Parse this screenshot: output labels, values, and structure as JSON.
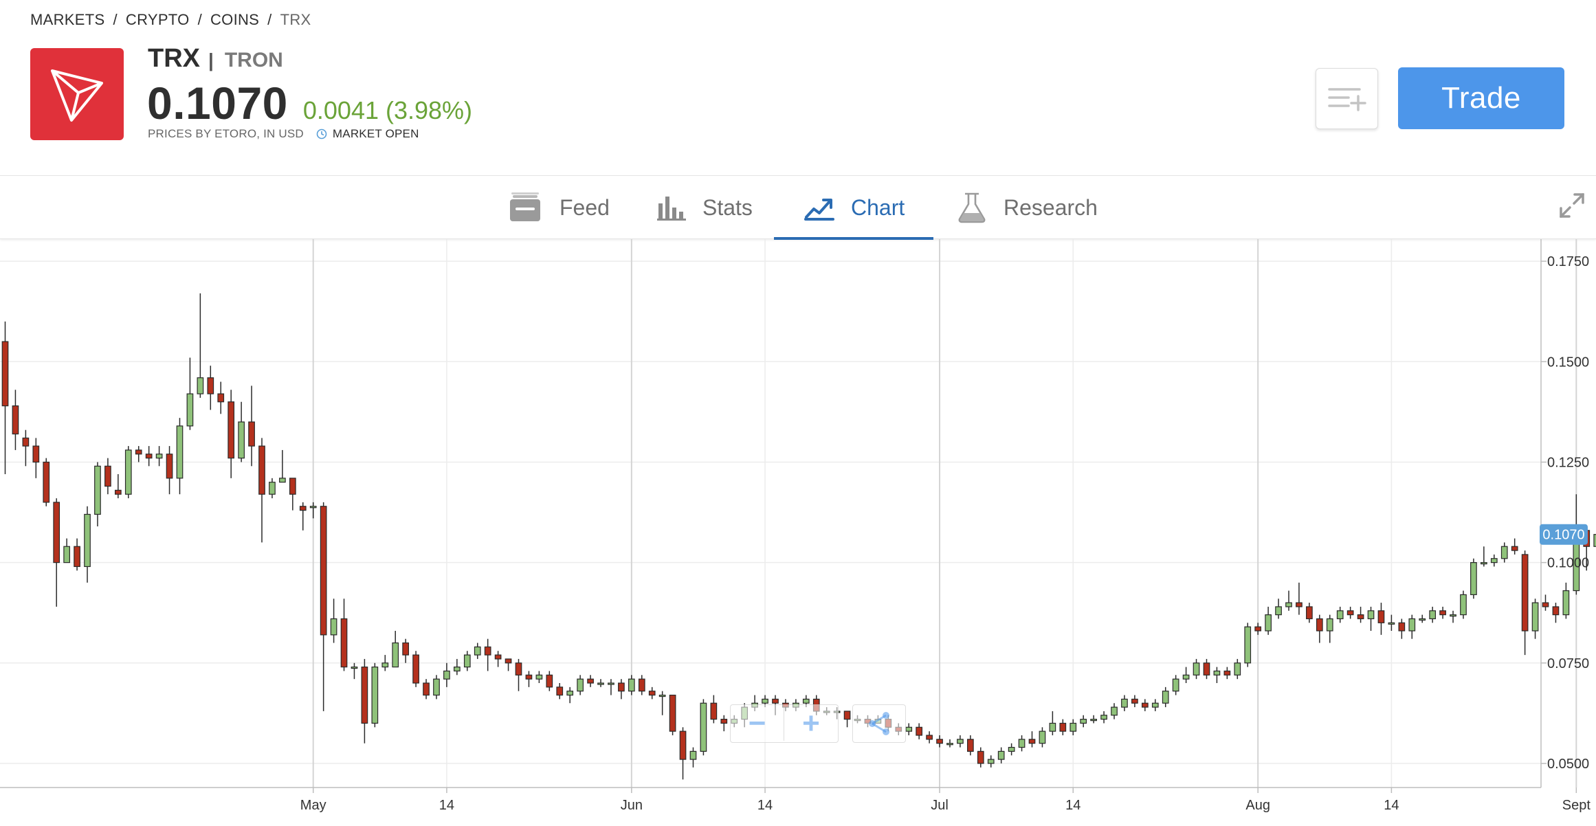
{
  "breadcrumb": {
    "items": [
      "MARKETS",
      "CRYPTO",
      "COINS"
    ],
    "current": "TRX",
    "separator": "/"
  },
  "instrument": {
    "symbol": "TRX",
    "name": "TRON",
    "price": "0.1070",
    "change": "0.0041 (3.98%)",
    "source": "PRICES BY ETORO, IN USD",
    "market_status": "MARKET OPEN",
    "logo_color": "#e0313a"
  },
  "actions": {
    "trade_label": "Trade",
    "watchlist_icon": "add-to-watchlist-icon"
  },
  "tabs": [
    {
      "label": "Feed",
      "icon": "feed-icon"
    },
    {
      "label": "Stats",
      "icon": "stats-icon"
    },
    {
      "label": "Chart",
      "icon": "chart-icon",
      "active": true
    },
    {
      "label": "Research",
      "icon": "research-icon"
    }
  ],
  "colors": {
    "accent": "#2b6cb3",
    "trade": "#4d96ea",
    "up": "#6aa338",
    "candle_up": "#8fc27a",
    "candle_down": "#b4311d",
    "price_tag": "#5a9fd8"
  },
  "chart_controls": {
    "zoom_out": "−",
    "zoom_in": "+"
  },
  "chart_data": {
    "type": "candlestick",
    "interval": "daily",
    "ylim": [
      0.044,
      0.1805
    ],
    "y_ticks": [
      "0.0500",
      "0.0750",
      "0.1000",
      "0.1250",
      "0.1500",
      "0.1750"
    ],
    "y_tick_values": [
      0.05,
      0.075,
      0.1,
      0.125,
      0.15,
      0.175
    ],
    "x_ticks": [
      {
        "label": "May",
        "day": 30,
        "major": true
      },
      {
        "label": "14",
        "day": 43
      },
      {
        "label": "Jun",
        "day": 61,
        "major": true
      },
      {
        "label": "14",
        "day": 74
      },
      {
        "label": "Jul",
        "day": 91,
        "major": true
      },
      {
        "label": "14",
        "day": 104
      },
      {
        "label": "Aug",
        "day": 122,
        "major": true
      },
      {
        "label": "14",
        "day": 135
      },
      {
        "label": "Sept",
        "day": 153,
        "major": true
      },
      {
        "label": "14",
        "day": 166
      }
    ],
    "last_price_label": "0.1070",
    "last_price": 0.107,
    "grid": true,
    "candles": [
      [
        0.155,
        0.139,
        0.16,
        0.122
      ],
      [
        0.139,
        0.132,
        0.143,
        0.128
      ],
      [
        0.131,
        0.129,
        0.133,
        0.124
      ],
      [
        0.129,
        0.125,
        0.131,
        0.121
      ],
      [
        0.125,
        0.115,
        0.126,
        0.114
      ],
      [
        0.115,
        0.1,
        0.116,
        0.089
      ],
      [
        0.1,
        0.104,
        0.106,
        0.101
      ],
      [
        0.104,
        0.099,
        0.106,
        0.098
      ],
      [
        0.099,
        0.112,
        0.114,
        0.095
      ],
      [
        0.112,
        0.124,
        0.125,
        0.109
      ],
      [
        0.124,
        0.119,
        0.126,
        0.117
      ],
      [
        0.118,
        0.117,
        0.122,
        0.116
      ],
      [
        0.117,
        0.128,
        0.129,
        0.116
      ],
      [
        0.128,
        0.127,
        0.129,
        0.125
      ],
      [
        0.127,
        0.126,
        0.129,
        0.124
      ],
      [
        0.126,
        0.127,
        0.129,
        0.124
      ],
      [
        0.127,
        0.121,
        0.129,
        0.117
      ],
      [
        0.121,
        0.134,
        0.136,
        0.117
      ],
      [
        0.134,
        0.142,
        0.151,
        0.133
      ],
      [
        0.142,
        0.146,
        0.167,
        0.141
      ],
      [
        0.146,
        0.142,
        0.149,
        0.138
      ],
      [
        0.142,
        0.14,
        0.145,
        0.137
      ],
      [
        0.14,
        0.126,
        0.143,
        0.121
      ],
      [
        0.126,
        0.135,
        0.14,
        0.125
      ],
      [
        0.135,
        0.129,
        0.144,
        0.124
      ],
      [
        0.129,
        0.117,
        0.131,
        0.105
      ],
      [
        0.117,
        0.12,
        0.121,
        0.116
      ],
      [
        0.12,
        0.121,
        0.128,
        0.12
      ],
      [
        0.121,
        0.117,
        0.121,
        0.113
      ],
      [
        0.114,
        0.113,
        0.115,
        0.108
      ],
      [
        0.114,
        0.114,
        0.115,
        0.111
      ],
      [
        0.114,
        0.082,
        0.115,
        0.063
      ],
      [
        0.082,
        0.086,
        0.091,
        0.08
      ],
      [
        0.086,
        0.074,
        0.091,
        0.073
      ],
      [
        0.074,
        0.074,
        0.075,
        0.071
      ],
      [
        0.074,
        0.06,
        0.076,
        0.055
      ],
      [
        0.06,
        0.074,
        0.075,
        0.059
      ],
      [
        0.074,
        0.075,
        0.077,
        0.073
      ],
      [
        0.074,
        0.08,
        0.083,
        0.074
      ],
      [
        0.08,
        0.077,
        0.081,
        0.075
      ],
      [
        0.077,
        0.07,
        0.078,
        0.069
      ],
      [
        0.07,
        0.067,
        0.071,
        0.066
      ],
      [
        0.067,
        0.071,
        0.072,
        0.066
      ],
      [
        0.071,
        0.073,
        0.075,
        0.069
      ],
      [
        0.073,
        0.074,
        0.076,
        0.072
      ],
      [
        0.074,
        0.077,
        0.078,
        0.073
      ],
      [
        0.077,
        0.079,
        0.08,
        0.076
      ],
      [
        0.079,
        0.077,
        0.081,
        0.073
      ],
      [
        0.077,
        0.076,
        0.078,
        0.074
      ],
      [
        0.076,
        0.075,
        0.076,
        0.073
      ],
      [
        0.075,
        0.072,
        0.076,
        0.068
      ],
      [
        0.072,
        0.071,
        0.073,
        0.069
      ],
      [
        0.071,
        0.072,
        0.073,
        0.07
      ],
      [
        0.072,
        0.069,
        0.073,
        0.068
      ],
      [
        0.069,
        0.067,
        0.07,
        0.066
      ],
      [
        0.067,
        0.068,
        0.069,
        0.065
      ],
      [
        0.068,
        0.071,
        0.072,
        0.067
      ],
      [
        0.071,
        0.07,
        0.072,
        0.069
      ],
      [
        0.07,
        0.07,
        0.071,
        0.069
      ],
      [
        0.07,
        0.07,
        0.071,
        0.067
      ],
      [
        0.07,
        0.068,
        0.071,
        0.066
      ],
      [
        0.068,
        0.071,
        0.072,
        0.067
      ],
      [
        0.071,
        0.068,
        0.072,
        0.067
      ],
      [
        0.068,
        0.067,
        0.069,
        0.066
      ],
      [
        0.067,
        0.067,
        0.068,
        0.062
      ],
      [
        0.067,
        0.058,
        0.067,
        0.057
      ],
      [
        0.058,
        0.051,
        0.059,
        0.046
      ],
      [
        0.051,
        0.053,
        0.054,
        0.049
      ],
      [
        0.053,
        0.065,
        0.066,
        0.052
      ],
      [
        0.065,
        0.061,
        0.067,
        0.06
      ],
      [
        0.061,
        0.06,
        0.062,
        0.058
      ],
      [
        0.06,
        0.061,
        0.062,
        0.059
      ],
      [
        0.061,
        0.064,
        0.065,
        0.059
      ],
      [
        0.064,
        0.065,
        0.067,
        0.063
      ],
      [
        0.065,
        0.066,
        0.067,
        0.064
      ],
      [
        0.066,
        0.065,
        0.067,
        0.062
      ],
      [
        0.065,
        0.064,
        0.066,
        0.063
      ],
      [
        0.064,
        0.065,
        0.066,
        0.063
      ],
      [
        0.065,
        0.066,
        0.067,
        0.064
      ],
      [
        0.066,
        0.063,
        0.067,
        0.062
      ],
      [
        0.063,
        0.063,
        0.064,
        0.062
      ],
      [
        0.063,
        0.063,
        0.064,
        0.061
      ],
      [
        0.063,
        0.061,
        0.063,
        0.059
      ],
      [
        0.061,
        0.061,
        0.062,
        0.06
      ],
      [
        0.061,
        0.06,
        0.062,
        0.059
      ],
      [
        0.06,
        0.061,
        0.062,
        0.06
      ],
      [
        0.061,
        0.059,
        0.062,
        0.058
      ],
      [
        0.059,
        0.058,
        0.06,
        0.057
      ],
      [
        0.058,
        0.059,
        0.06,
        0.057
      ],
      [
        0.059,
        0.057,
        0.06,
        0.056
      ],
      [
        0.057,
        0.056,
        0.058,
        0.055
      ],
      [
        0.056,
        0.055,
        0.057,
        0.054
      ],
      [
        0.055,
        0.055,
        0.056,
        0.054
      ],
      [
        0.055,
        0.056,
        0.057,
        0.054
      ],
      [
        0.056,
        0.053,
        0.057,
        0.052
      ],
      [
        0.053,
        0.05,
        0.054,
        0.049
      ],
      [
        0.05,
        0.051,
        0.052,
        0.049
      ],
      [
        0.051,
        0.053,
        0.054,
        0.05
      ],
      [
        0.053,
        0.054,
        0.055,
        0.052
      ],
      [
        0.054,
        0.056,
        0.057,
        0.053
      ],
      [
        0.056,
        0.055,
        0.058,
        0.054
      ],
      [
        0.055,
        0.058,
        0.059,
        0.054
      ],
      [
        0.058,
        0.06,
        0.063,
        0.057
      ],
      [
        0.06,
        0.058,
        0.061,
        0.057
      ],
      [
        0.058,
        0.06,
        0.061,
        0.057
      ],
      [
        0.06,
        0.061,
        0.062,
        0.059
      ],
      [
        0.061,
        0.061,
        0.062,
        0.06
      ],
      [
        0.061,
        0.062,
        0.063,
        0.06
      ],
      [
        0.062,
        0.064,
        0.065,
        0.061
      ],
      [
        0.064,
        0.066,
        0.067,
        0.063
      ],
      [
        0.066,
        0.065,
        0.067,
        0.064
      ],
      [
        0.065,
        0.064,
        0.066,
        0.063
      ],
      [
        0.064,
        0.065,
        0.066,
        0.063
      ],
      [
        0.065,
        0.068,
        0.069,
        0.064
      ],
      [
        0.068,
        0.071,
        0.072,
        0.067
      ],
      [
        0.071,
        0.072,
        0.074,
        0.07
      ],
      [
        0.072,
        0.075,
        0.076,
        0.071
      ],
      [
        0.075,
        0.072,
        0.076,
        0.071
      ],
      [
        0.072,
        0.073,
        0.074,
        0.07
      ],
      [
        0.073,
        0.072,
        0.074,
        0.071
      ],
      [
        0.072,
        0.075,
        0.076,
        0.071
      ],
      [
        0.075,
        0.084,
        0.085,
        0.074
      ],
      [
        0.084,
        0.083,
        0.085,
        0.082
      ],
      [
        0.083,
        0.087,
        0.089,
        0.082
      ],
      [
        0.087,
        0.089,
        0.091,
        0.086
      ],
      [
        0.089,
        0.09,
        0.093,
        0.088
      ],
      [
        0.09,
        0.089,
        0.095,
        0.087
      ],
      [
        0.089,
        0.086,
        0.09,
        0.085
      ],
      [
        0.086,
        0.083,
        0.087,
        0.08
      ],
      [
        0.083,
        0.086,
        0.087,
        0.08
      ],
      [
        0.086,
        0.088,
        0.089,
        0.085
      ],
      [
        0.088,
        0.087,
        0.089,
        0.086
      ],
      [
        0.087,
        0.086,
        0.089,
        0.085
      ],
      [
        0.086,
        0.088,
        0.089,
        0.083
      ],
      [
        0.088,
        0.085,
        0.09,
        0.082
      ],
      [
        0.085,
        0.085,
        0.087,
        0.083
      ],
      [
        0.085,
        0.083,
        0.086,
        0.081
      ],
      [
        0.083,
        0.086,
        0.087,
        0.081
      ],
      [
        0.086,
        0.086,
        0.087,
        0.085
      ],
      [
        0.086,
        0.088,
        0.089,
        0.085
      ],
      [
        0.088,
        0.087,
        0.089,
        0.086
      ],
      [
        0.087,
        0.087,
        0.088,
        0.085
      ],
      [
        0.087,
        0.092,
        0.093,
        0.086
      ],
      [
        0.092,
        0.1,
        0.101,
        0.091
      ],
      [
        0.1,
        0.1,
        0.104,
        0.099
      ],
      [
        0.1,
        0.101,
        0.102,
        0.099
      ],
      [
        0.101,
        0.104,
        0.105,
        0.1
      ],
      [
        0.104,
        0.103,
        0.106,
        0.102
      ],
      [
        0.102,
        0.083,
        0.103,
        0.077
      ],
      [
        0.083,
        0.09,
        0.091,
        0.081
      ],
      [
        0.09,
        0.089,
        0.092,
        0.088
      ],
      [
        0.089,
        0.087,
        0.09,
        0.085
      ],
      [
        0.087,
        0.093,
        0.095,
        0.086
      ],
      [
        0.093,
        0.108,
        0.117,
        0.092
      ],
      [
        0.108,
        0.104,
        0.109,
        0.098
      ],
      [
        0.104,
        0.107,
        0.109,
        0.103
      ]
    ]
  }
}
